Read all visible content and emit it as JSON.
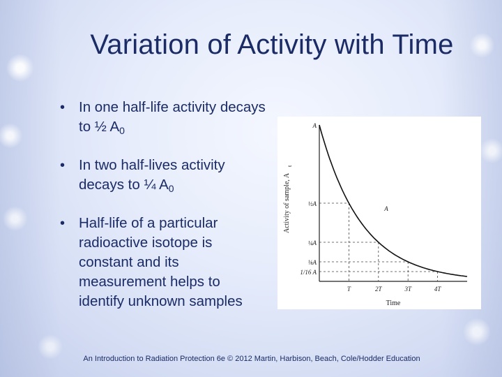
{
  "slide": {
    "title": "Variation of Activity with Time",
    "bullets": [
      {
        "text": "In one half-life activity decays to ½ A",
        "sub": "0"
      },
      {
        "text": "In two half-lives activity decays to ¼ A",
        "sub": "0"
      },
      {
        "text": "Half-life of a particular radioactive isotope is constant and its measurement helps to identify unknown samples",
        "sub": ""
      }
    ],
    "footer": "An Introduction to Radiation Protection 6e © 2012 Martin, Harbison, Beach, Cole/Hodder Education"
  },
  "chart_data": {
    "type": "line",
    "xlabel": "Time",
    "ylabel": "Activity of sample, A",
    "ylabel_sub": "t",
    "equation": "A",
    "y_tick_labels": [
      "A",
      "½A",
      "¼A",
      "⅛A",
      "1/16 A"
    ],
    "x_tick_labels": [
      "T",
      "2T",
      "3T",
      "4T"
    ],
    "x_half_life_multiples": [
      1,
      2,
      3,
      4
    ],
    "series": [
      {
        "x": [
          0,
          0.5,
          1,
          1.5,
          2,
          2.5,
          3,
          3.5,
          4,
          4.5,
          5
        ],
        "y": [
          1,
          0.707,
          0.5,
          0.354,
          0.25,
          0.177,
          0.125,
          0.088,
          0.0625,
          0.044,
          0.031
        ]
      }
    ],
    "xlim": [
      0,
      5
    ],
    "ylim": [
      0,
      1
    ],
    "grid": false
  }
}
